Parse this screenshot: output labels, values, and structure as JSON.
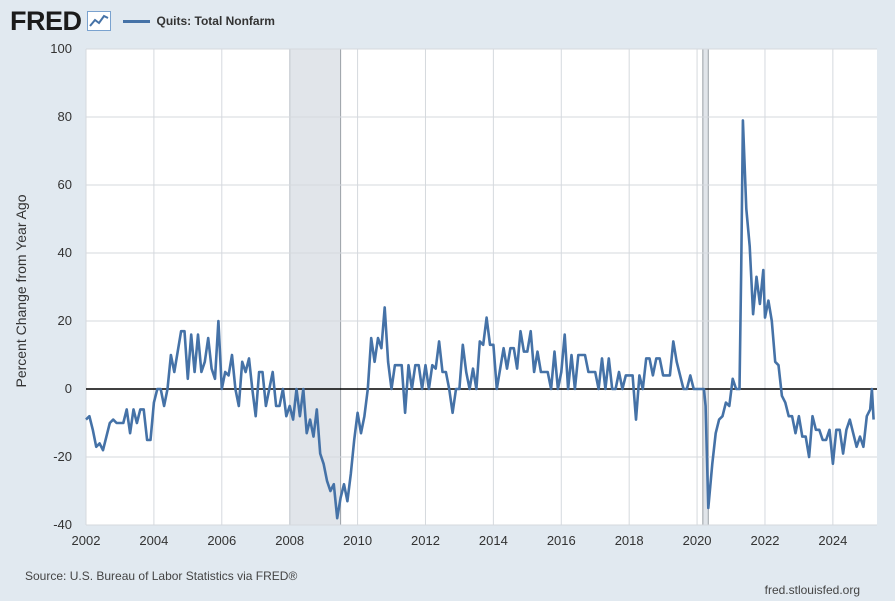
{
  "header": {
    "logo": "FRED",
    "legend_label": "Quits: Total Nonfarm"
  },
  "footer": {
    "source": "Source: U.S. Bureau of Labor Statistics via FRED®",
    "url": "fred.stlouisfed.org"
  },
  "colors": {
    "series": "#4572a7",
    "background": "#e1e9f0",
    "plot_bg": "#ffffff",
    "grid": "#d5d9de",
    "recession": "#e1e5ea",
    "zero_line": "#000000"
  },
  "chart_data": {
    "type": "line",
    "title": "",
    "xlabel": "",
    "ylabel": "Percent Change from Year Ago",
    "xlim": [
      2002,
      2025.3
    ],
    "ylim": [
      -40,
      100
    ],
    "yticks": [
      -40,
      -20,
      0,
      20,
      40,
      60,
      80,
      100
    ],
    "xticks": [
      2002,
      2004,
      2006,
      2008,
      2010,
      2012,
      2014,
      2016,
      2018,
      2020,
      2022,
      2024
    ],
    "grid": true,
    "recessions": [
      [
        2008.0,
        2009.5
      ],
      [
        2020.17,
        2020.33
      ]
    ],
    "series": [
      {
        "name": "Quits: Total Nonfarm",
        "points": [
          [
            2002.0,
            -9
          ],
          [
            2002.1,
            -8
          ],
          [
            2002.2,
            -12
          ],
          [
            2002.3,
            -17
          ],
          [
            2002.4,
            -16
          ],
          [
            2002.5,
            -18
          ],
          [
            2002.6,
            -14
          ],
          [
            2002.7,
            -10
          ],
          [
            2002.8,
            -9
          ],
          [
            2002.9,
            -10
          ],
          [
            2003.0,
            -10
          ],
          [
            2003.1,
            -10
          ],
          [
            2003.2,
            -6
          ],
          [
            2003.3,
            -13
          ],
          [
            2003.4,
            -6
          ],
          [
            2003.5,
            -10
          ],
          [
            2003.6,
            -6
          ],
          [
            2003.7,
            -6
          ],
          [
            2003.8,
            -15
          ],
          [
            2003.9,
            -15
          ],
          [
            2004.0,
            -4
          ],
          [
            2004.1,
            0
          ],
          [
            2004.2,
            0
          ],
          [
            2004.3,
            -5
          ],
          [
            2004.4,
            0
          ],
          [
            2004.5,
            10
          ],
          [
            2004.6,
            5
          ],
          [
            2004.7,
            11
          ],
          [
            2004.8,
            17
          ],
          [
            2004.9,
            17
          ],
          [
            2005.0,
            3
          ],
          [
            2005.1,
            16
          ],
          [
            2005.2,
            5
          ],
          [
            2005.3,
            16
          ],
          [
            2005.4,
            5
          ],
          [
            2005.5,
            8
          ],
          [
            2005.6,
            15
          ],
          [
            2005.7,
            6
          ],
          [
            2005.8,
            3
          ],
          [
            2005.9,
            20
          ],
          [
            2006.0,
            0
          ],
          [
            2006.1,
            5
          ],
          [
            2006.2,
            4
          ],
          [
            2006.3,
            10
          ],
          [
            2006.4,
            0
          ],
          [
            2006.5,
            -5
          ],
          [
            2006.6,
            8
          ],
          [
            2006.7,
            5
          ],
          [
            2006.8,
            9
          ],
          [
            2006.9,
            0
          ],
          [
            2007.0,
            -8
          ],
          [
            2007.1,
            5
          ],
          [
            2007.2,
            5
          ],
          [
            2007.3,
            -5
          ],
          [
            2007.4,
            0
          ],
          [
            2007.5,
            5
          ],
          [
            2007.6,
            -5
          ],
          [
            2007.7,
            -5
          ],
          [
            2007.8,
            0
          ],
          [
            2007.9,
            -8
          ],
          [
            2008.0,
            -5
          ],
          [
            2008.1,
            -9
          ],
          [
            2008.2,
            0
          ],
          [
            2008.3,
            -8
          ],
          [
            2008.4,
            0
          ],
          [
            2008.5,
            -13
          ],
          [
            2008.6,
            -9
          ],
          [
            2008.7,
            -14
          ],
          [
            2008.8,
            -6
          ],
          [
            2008.9,
            -19
          ],
          [
            2009.0,
            -22
          ],
          [
            2009.1,
            -27
          ],
          [
            2009.2,
            -30
          ],
          [
            2009.3,
            -28
          ],
          [
            2009.4,
            -38
          ],
          [
            2009.5,
            -32
          ],
          [
            2009.6,
            -28
          ],
          [
            2009.7,
            -33
          ],
          [
            2009.8,
            -25
          ],
          [
            2009.9,
            -15
          ],
          [
            2010.0,
            -7
          ],
          [
            2010.1,
            -13
          ],
          [
            2010.2,
            -8
          ],
          [
            2010.3,
            0
          ],
          [
            2010.4,
            15
          ],
          [
            2010.5,
            8
          ],
          [
            2010.6,
            15
          ],
          [
            2010.7,
            12
          ],
          [
            2010.8,
            24
          ],
          [
            2010.9,
            8
          ],
          [
            2011.0,
            0
          ],
          [
            2011.1,
            7
          ],
          [
            2011.2,
            7
          ],
          [
            2011.3,
            7
          ],
          [
            2011.4,
            -7
          ],
          [
            2011.5,
            7
          ],
          [
            2011.6,
            0
          ],
          [
            2011.7,
            7
          ],
          [
            2011.8,
            7
          ],
          [
            2011.9,
            0
          ],
          [
            2012.0,
            7
          ],
          [
            2012.1,
            0
          ],
          [
            2012.2,
            7
          ],
          [
            2012.3,
            6
          ],
          [
            2012.4,
            14
          ],
          [
            2012.5,
            5
          ],
          [
            2012.6,
            5
          ],
          [
            2012.7,
            0
          ],
          [
            2012.8,
            -7
          ],
          [
            2012.9,
            0
          ],
          [
            2013.0,
            0
          ],
          [
            2013.1,
            13
          ],
          [
            2013.2,
            5
          ],
          [
            2013.3,
            0
          ],
          [
            2013.4,
            6
          ],
          [
            2013.5,
            0
          ],
          [
            2013.6,
            14
          ],
          [
            2013.7,
            13
          ],
          [
            2013.8,
            21
          ],
          [
            2013.9,
            13
          ],
          [
            2014.0,
            13
          ],
          [
            2014.1,
            0
          ],
          [
            2014.2,
            6
          ],
          [
            2014.3,
            12
          ],
          [
            2014.4,
            6
          ],
          [
            2014.5,
            12
          ],
          [
            2014.6,
            12
          ],
          [
            2014.7,
            6
          ],
          [
            2014.8,
            17
          ],
          [
            2014.9,
            11
          ],
          [
            2015.0,
            11
          ],
          [
            2015.1,
            17
          ],
          [
            2015.2,
            5
          ],
          [
            2015.3,
            11
          ],
          [
            2015.4,
            5
          ],
          [
            2015.5,
            5
          ],
          [
            2015.6,
            5
          ],
          [
            2015.7,
            0
          ],
          [
            2015.8,
            11
          ],
          [
            2015.9,
            0
          ],
          [
            2016.0,
            5
          ],
          [
            2016.1,
            16
          ],
          [
            2016.2,
            0
          ],
          [
            2016.3,
            10
          ],
          [
            2016.4,
            0
          ],
          [
            2016.5,
            10
          ],
          [
            2016.6,
            10
          ],
          [
            2016.7,
            10
          ],
          [
            2016.8,
            5
          ],
          [
            2016.9,
            5
          ],
          [
            2017.0,
            5
          ],
          [
            2017.1,
            0
          ],
          [
            2017.2,
            9
          ],
          [
            2017.3,
            0
          ],
          [
            2017.4,
            9
          ],
          [
            2017.5,
            0
          ],
          [
            2017.6,
            0
          ],
          [
            2017.7,
            5
          ],
          [
            2017.8,
            0
          ],
          [
            2017.9,
            4
          ],
          [
            2018.0,
            4
          ],
          [
            2018.1,
            4
          ],
          [
            2018.2,
            -9
          ],
          [
            2018.3,
            4
          ],
          [
            2018.4,
            0
          ],
          [
            2018.5,
            9
          ],
          [
            2018.6,
            9
          ],
          [
            2018.7,
            4
          ],
          [
            2018.8,
            9
          ],
          [
            2018.9,
            9
          ],
          [
            2019.0,
            4
          ],
          [
            2019.1,
            4
          ],
          [
            2019.2,
            4
          ],
          [
            2019.3,
            14
          ],
          [
            2019.4,
            8
          ],
          [
            2019.5,
            4
          ],
          [
            2019.6,
            0
          ],
          [
            2019.7,
            0
          ],
          [
            2019.8,
            4
          ],
          [
            2019.9,
            0
          ],
          [
            2020.0,
            0
          ],
          [
            2020.1,
            0
          ],
          [
            2020.2,
            0
          ],
          [
            2020.25,
            -5
          ],
          [
            2020.33,
            -35
          ],
          [
            2020.45,
            -22
          ],
          [
            2020.55,
            -13
          ],
          [
            2020.65,
            -9
          ],
          [
            2020.75,
            -8
          ],
          [
            2020.85,
            -4
          ],
          [
            2020.95,
            -5
          ],
          [
            2021.05,
            3
          ],
          [
            2021.15,
            0
          ],
          [
            2021.25,
            0
          ],
          [
            2021.3,
            35
          ],
          [
            2021.35,
            79
          ],
          [
            2021.45,
            53
          ],
          [
            2021.55,
            42
          ],
          [
            2021.65,
            22
          ],
          [
            2021.75,
            33
          ],
          [
            2021.85,
            25
          ],
          [
            2021.95,
            35
          ],
          [
            2022.0,
            21
          ],
          [
            2022.1,
            26
          ],
          [
            2022.2,
            20
          ],
          [
            2022.3,
            8
          ],
          [
            2022.4,
            7
          ],
          [
            2022.5,
            -2
          ],
          [
            2022.6,
            -4
          ],
          [
            2022.7,
            -8
          ],
          [
            2022.8,
            -8
          ],
          [
            2022.9,
            -13
          ],
          [
            2023.0,
            -8
          ],
          [
            2023.1,
            -14
          ],
          [
            2023.2,
            -14
          ],
          [
            2023.3,
            -20
          ],
          [
            2023.4,
            -8
          ],
          [
            2023.5,
            -12
          ],
          [
            2023.6,
            -12
          ],
          [
            2023.7,
            -15
          ],
          [
            2023.8,
            -15
          ],
          [
            2023.9,
            -12
          ],
          [
            2024.0,
            -22
          ],
          [
            2024.1,
            -12
          ],
          [
            2024.2,
            -12
          ],
          [
            2024.3,
            -19
          ],
          [
            2024.4,
            -12
          ],
          [
            2024.5,
            -9
          ],
          [
            2024.6,
            -13
          ],
          [
            2024.7,
            -17
          ],
          [
            2024.8,
            -14
          ],
          [
            2024.9,
            -17
          ],
          [
            2025.0,
            -8
          ],
          [
            2025.1,
            -6
          ],
          [
            2025.15,
            0
          ],
          [
            2025.2,
            -9
          ]
        ]
      }
    ]
  }
}
